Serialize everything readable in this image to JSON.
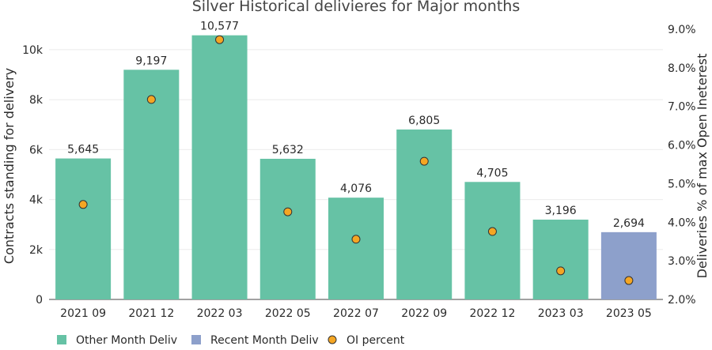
{
  "chart_data": {
    "type": "bar",
    "title": "Silver Historical delivieres for Major months",
    "xlabel": "",
    "ylabel": "Contracts standing for delivery",
    "y2label": "Deliveries % of max Open Ineterest",
    "categories": [
      "2021 09",
      "2021 12",
      "2022 03",
      "2022 05",
      "2022 07",
      "2022 09",
      "2022 12",
      "2023 03",
      "2023 05"
    ],
    "series": [
      {
        "name": "Other Month Deliv",
        "type": "bar",
        "axis": "left",
        "color": "#66c2a5",
        "values": [
          5645,
          9197,
          10577,
          5632,
          4076,
          6805,
          4705,
          3196,
          null
        ],
        "labels": [
          "5,645",
          "9,197",
          "10,577",
          "5,632",
          "4,076",
          "6,805",
          "4,705",
          "3,196",
          null
        ]
      },
      {
        "name": "Recent Month Deliv",
        "type": "bar",
        "axis": "left",
        "color": "#8da0cb",
        "values": [
          null,
          null,
          null,
          null,
          null,
          null,
          null,
          null,
          2694
        ],
        "labels": [
          null,
          null,
          null,
          null,
          null,
          null,
          null,
          null,
          "2,694"
        ]
      },
      {
        "name": "OI percent",
        "type": "scatter",
        "axis": "right",
        "color": "#f5a623",
        "values": [
          4.46,
          7.18,
          8.73,
          4.27,
          3.56,
          5.58,
          3.76,
          2.74,
          2.49
        ]
      }
    ],
    "ylim": [
      0,
      10820
    ],
    "y2lim": [
      2.0,
      9.0
    ],
    "yticks": [
      0,
      2000,
      4000,
      6000,
      8000,
      10000
    ],
    "ytick_labels": [
      "0",
      "2k",
      "4k",
      "6k",
      "8k",
      "10k"
    ],
    "y2ticks": [
      2,
      3,
      4,
      5,
      6,
      7,
      8,
      9
    ],
    "y2tick_labels": [
      "2.0%",
      "3.0%",
      "4.0%",
      "5.0%",
      "6.0%",
      "7.0%",
      "8.0%",
      "9.0%"
    ],
    "grid": true,
    "legend_position": "bottom-left"
  }
}
